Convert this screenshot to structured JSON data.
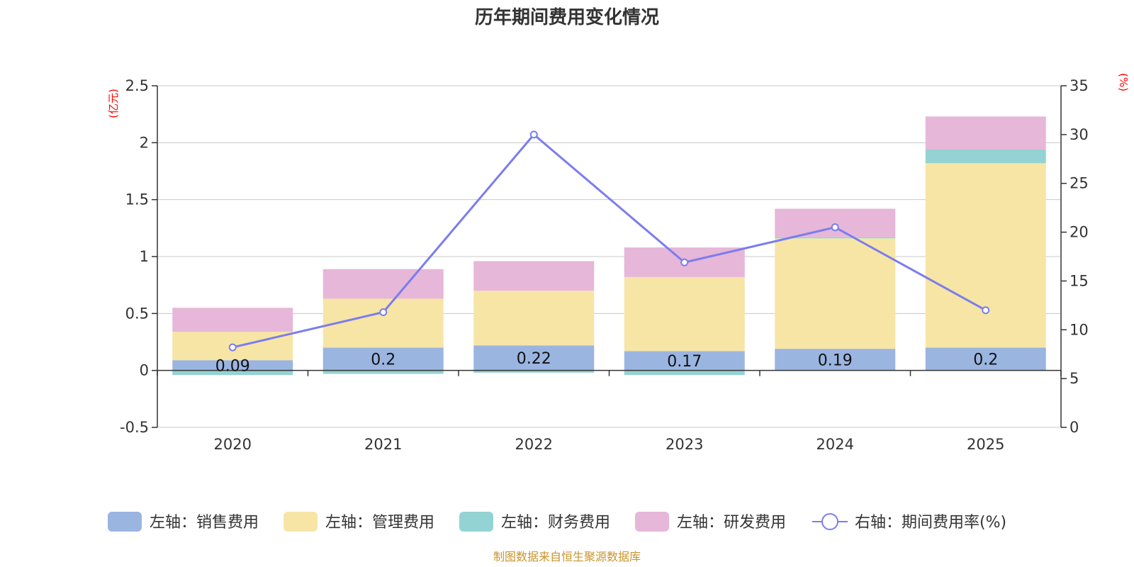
{
  "colors": {
    "sales": "#9bb5e1",
    "admin": "#f7e5a6",
    "finance": "#94d3d3",
    "rd": "#e6b7d8",
    "rate": "#7b7ded",
    "grid": "#c8c8c8",
    "axis": "#333333",
    "unit": "#ff0000",
    "source": "#c8952c"
  },
  "chart_data": {
    "type": "bar",
    "stacked": true,
    "title": "历年期间费用变化情况",
    "categories": [
      "2020",
      "2021",
      "2022",
      "2023",
      "2024",
      "2025"
    ],
    "left_axis": {
      "unit": "(亿元)",
      "ylim": [
        -0.5,
        2.5
      ],
      "ticks": [
        -0.5,
        0,
        0.5,
        1,
        1.5,
        2,
        2.5
      ],
      "tick_labels": [
        "-0.5",
        "0",
        "0.5",
        "1",
        "1.5",
        "2",
        "2.5"
      ]
    },
    "right_axis": {
      "unit": "(%)",
      "ylim": [
        0,
        35
      ],
      "ticks": [
        0,
        5,
        10,
        15,
        20,
        25,
        30,
        35
      ],
      "tick_labels": [
        "0",
        "5",
        "10",
        "15",
        "20",
        "25",
        "30",
        "35"
      ]
    },
    "series": [
      {
        "key": "sales",
        "name": "左轴：销售费用",
        "axis": "left",
        "type": "bar",
        "values": [
          0.09,
          0.2,
          0.22,
          0.17,
          0.19,
          0.2
        ],
        "labels": [
          "0.09",
          "0.2",
          "0.22",
          "0.17",
          "0.19",
          "0.2"
        ]
      },
      {
        "key": "admin",
        "name": "左轴：管理费用",
        "axis": "left",
        "type": "bar",
        "values": [
          0.25,
          0.43,
          0.48,
          0.65,
          0.97,
          1.62
        ]
      },
      {
        "key": "finance",
        "name": "左轴：财务费用",
        "axis": "left",
        "type": "bar",
        "values": [
          -0.04,
          -0.03,
          -0.02,
          -0.04,
          0.01,
          0.12
        ]
      },
      {
        "key": "rd",
        "name": "左轴：研发费用",
        "axis": "left",
        "type": "bar",
        "values": [
          0.21,
          0.26,
          0.26,
          0.26,
          0.25,
          0.29
        ]
      },
      {
        "key": "rate",
        "name": "右轴：期间费用率(%)",
        "axis": "right",
        "type": "line",
        "values": [
          8.2,
          11.8,
          30.0,
          16.9,
          20.5,
          12.0
        ]
      }
    ],
    "source": "制图数据来自恒生聚源数据库"
  }
}
